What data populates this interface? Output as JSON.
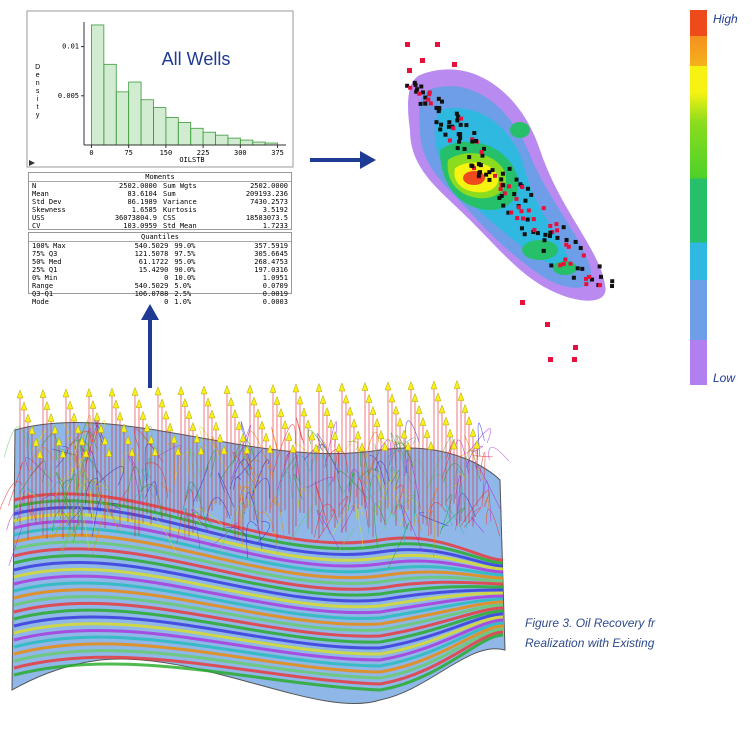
{
  "chart_data": {
    "type": "histogram",
    "title": "All Wells",
    "y_label": "Density",
    "x_label": "OILSTB",
    "bins": [
      0,
      25,
      50,
      75,
      100,
      125,
      150,
      175,
      200,
      225,
      250,
      275,
      300,
      325,
      350,
      375
    ],
    "values": [
      0.0122,
      0.0082,
      0.0054,
      0.0064,
      0.0046,
      0.0038,
      0.0028,
      0.0023,
      0.0017,
      0.0013,
      0.001,
      0.0007,
      0.0005,
      0.0003,
      0.0002
    ],
    "color": "#7fc97f",
    "xlim": [
      -15,
      392
    ],
    "ylim": [
      0,
      0.0125
    ],
    "xticks": [
      0,
      75,
      150,
      225,
      300,
      375
    ],
    "yticks": [
      0.005,
      0.01
    ]
  },
  "moments": {
    "title": "Moments",
    "rows": [
      [
        "N",
        "2502.0000",
        "Sum Wgts",
        "2502.0000"
      ],
      [
        "Mean",
        "83.6104",
        "Sum",
        "209193.236"
      ],
      [
        "Std Dev",
        "86.1989",
        "Variance",
        "7430.2573"
      ],
      [
        "Skewness",
        "1.6585",
        "Kurtosis",
        "3.5192"
      ],
      [
        "USS",
        "36073804.9",
        "CSS",
        "18583073.5"
      ],
      [
        "CV",
        "103.0959",
        "Std Mean",
        "1.7233"
      ]
    ]
  },
  "quantiles": {
    "title": "Quantiles",
    "rows": [
      [
        "100% Max",
        "540.5029",
        "99.0%",
        "357.5919"
      ],
      [
        "75% Q3",
        "121.5078",
        "97.5%",
        "305.6645"
      ],
      [
        "50% Med",
        "61.1722",
        "95.0%",
        "268.4753"
      ],
      [
        "25% Q1",
        "15.4290",
        "90.0%",
        "197.0316"
      ],
      [
        "0% Min",
        "0",
        "10.0%",
        "1.0951"
      ],
      [
        "Range",
        "540.5029",
        "5.0%",
        "0.0709"
      ],
      [
        "Q3-Q1",
        "106.0788",
        "2.5%",
        "0.0019"
      ],
      [
        "Mode",
        "0",
        "1.0%",
        "0.0003"
      ]
    ]
  },
  "colorbar": {
    "high": "High",
    "low": "Low"
  },
  "caption": [
    "Figure 3. Oil Recovery fr",
    "Realization with Existing"
  ]
}
